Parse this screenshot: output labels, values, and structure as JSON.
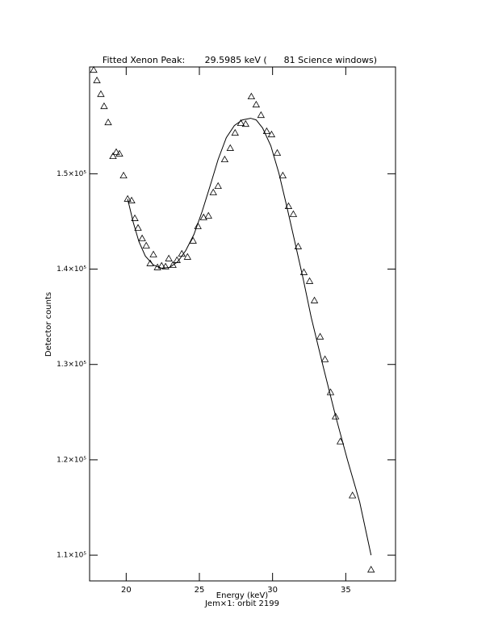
{
  "chart_data": {
    "type": "scatter",
    "title": "Fitted Xenon Peak:       29.5985 keV (      81 Science windows)",
    "x_label": "Energy (keV)",
    "x_sublabel": "Jem×1: orbit 2199",
    "y_label": "Detector counts",
    "xlim": [
      17.5,
      38.4
    ],
    "ylim": [
      107300,
      161200
    ],
    "xticks": [
      20,
      25,
      30,
      35
    ],
    "yticks": [
      {
        "value": 110000,
        "label": "1.1×10⁵"
      },
      {
        "value": 120000,
        "label": "1.2×10⁵"
      },
      {
        "value": 130000,
        "label": "1.3×10⁵"
      },
      {
        "value": 140000,
        "label": "1.4×10⁵"
      },
      {
        "value": 150000,
        "label": "1.5×10⁵"
      }
    ],
    "series": [
      {
        "type": "scatter",
        "marker": "triangle",
        "color": "#000000",
        "x": [
          17.78,
          18.0,
          18.27,
          18.49,
          18.77,
          19.1,
          19.32,
          19.54,
          19.82,
          20.1,
          20.37,
          20.59,
          20.81,
          21.09,
          21.37,
          21.64,
          21.86,
          22.14,
          22.42,
          22.69,
          22.91,
          23.19,
          23.47,
          23.8,
          24.19,
          24.57,
          24.9,
          25.29,
          25.62,
          25.95,
          26.28,
          26.73,
          27.11,
          27.44,
          27.83,
          28.16,
          28.55,
          28.88,
          29.21,
          29.6,
          29.93,
          30.32,
          30.7,
          31.09,
          31.42,
          31.75,
          32.14,
          32.53,
          32.86,
          33.25,
          33.58,
          33.96,
          34.3,
          34.63,
          35.46,
          36.73
        ],
        "values": [
          160890,
          159790,
          158350,
          157080,
          155390,
          151840,
          152270,
          152100,
          149810,
          147360,
          147190,
          145330,
          144320,
          143220,
          142460,
          140600,
          141530,
          140180,
          140350,
          140260,
          141110,
          140430,
          140940,
          141610,
          141280,
          142970,
          144490,
          145420,
          145590,
          148040,
          148710,
          151500,
          152690,
          154290,
          155310,
          155220,
          158100,
          157250,
          156150,
          154460,
          154120,
          152180,
          149810,
          146600,
          145760,
          142380,
          139670,
          138740,
          136710,
          132910,
          130540,
          127080,
          124540,
          121920,
          116260,
          108480
        ]
      },
      {
        "type": "line",
        "color": "#000000",
        "x": [
          20.1,
          20.48,
          20.87,
          21.31,
          21.86,
          22.42,
          22.97,
          23.52,
          24.07,
          24.63,
          25.18,
          25.73,
          26.28,
          26.84,
          27.39,
          27.94,
          28.5,
          28.88,
          29.32,
          29.88,
          30.43,
          30.98,
          31.53,
          32.09,
          32.64,
          33.47,
          34.3,
          35.12,
          35.95,
          36.73
        ],
        "values": [
          147360,
          144910,
          142880,
          141360,
          140430,
          140090,
          140180,
          140770,
          141950,
          143640,
          146010,
          148710,
          151500,
          153790,
          155060,
          155650,
          155820,
          155650,
          154800,
          152940,
          150070,
          146520,
          142800,
          138990,
          134940,
          129700,
          124620,
          119970,
          115580,
          110000
        ]
      }
    ]
  }
}
